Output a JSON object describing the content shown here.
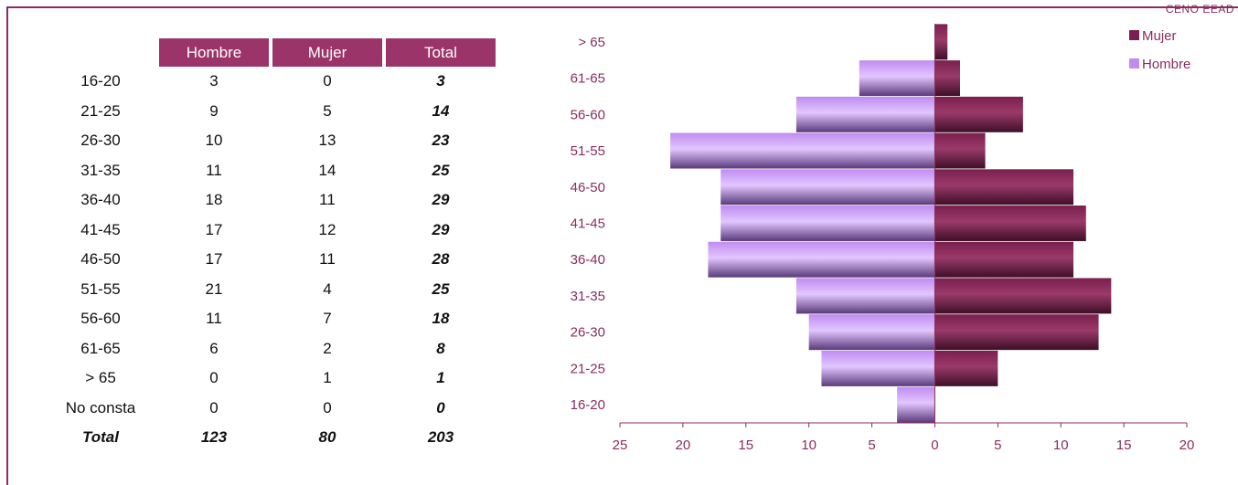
{
  "corner_text": "CENO EEAD",
  "table": {
    "headers": [
      "Hombre",
      "Mujer",
      "Total"
    ],
    "rows": [
      {
        "label": "16-20",
        "hombre": "3",
        "mujer": "0",
        "total": "3"
      },
      {
        "label": "21-25",
        "hombre": "9",
        "mujer": "5",
        "total": "14"
      },
      {
        "label": "26-30",
        "hombre": "10",
        "mujer": "13",
        "total": "23"
      },
      {
        "label": "31-35",
        "hombre": "11",
        "mujer": "14",
        "total": "25"
      },
      {
        "label": "36-40",
        "hombre": "18",
        "mujer": "11",
        "total": "29"
      },
      {
        "label": "41-45",
        "hombre": "17",
        "mujer": "12",
        "total": "29"
      },
      {
        "label": "46-50",
        "hombre": "17",
        "mujer": "11",
        "total": "28"
      },
      {
        "label": "51-55",
        "hombre": "21",
        "mujer": "4",
        "total": "25"
      },
      {
        "label": "56-60",
        "hombre": "11",
        "mujer": "7",
        "total": "18"
      },
      {
        "label": "61-65",
        "hombre": "6",
        "mujer": "2",
        "total": "8"
      },
      {
        "label": "> 65",
        "hombre": "0",
        "mujer": "1",
        "total": "1"
      },
      {
        "label": "No consta",
        "hombre": "0",
        "mujer": "0",
        "total": "0"
      }
    ],
    "total_row": {
      "label": "Total",
      "hombre": "123",
      "mujer": "80",
      "total": "203"
    }
  },
  "colors": {
    "mujer": "#7a1f4e",
    "hombre": "#c08cf0",
    "accent": "#9b3468",
    "text": "#8b2c5f"
  },
  "chart_data": {
    "type": "bar",
    "orientation": "horizontal",
    "categories": [
      "16-20",
      "21-25",
      "26-30",
      "31-35",
      "36-40",
      "41-45",
      "46-50",
      "51-55",
      "56-60",
      "61-65",
      "> 65"
    ],
    "series": [
      {
        "name": "Mujer",
        "values": [
          0,
          5,
          13,
          14,
          11,
          12,
          11,
          4,
          7,
          2,
          1
        ]
      },
      {
        "name": "Hombre",
        "values": [
          3,
          9,
          10,
          11,
          18,
          17,
          17,
          21,
          11,
          6,
          0
        ]
      }
    ],
    "x_ticks": [
      "25",
      "20",
      "15",
      "10",
      "5",
      "0",
      "5",
      "10",
      "15",
      "20"
    ],
    "xlim": [
      -25,
      20
    ],
    "legend_position": "top-right",
    "grid": false
  }
}
